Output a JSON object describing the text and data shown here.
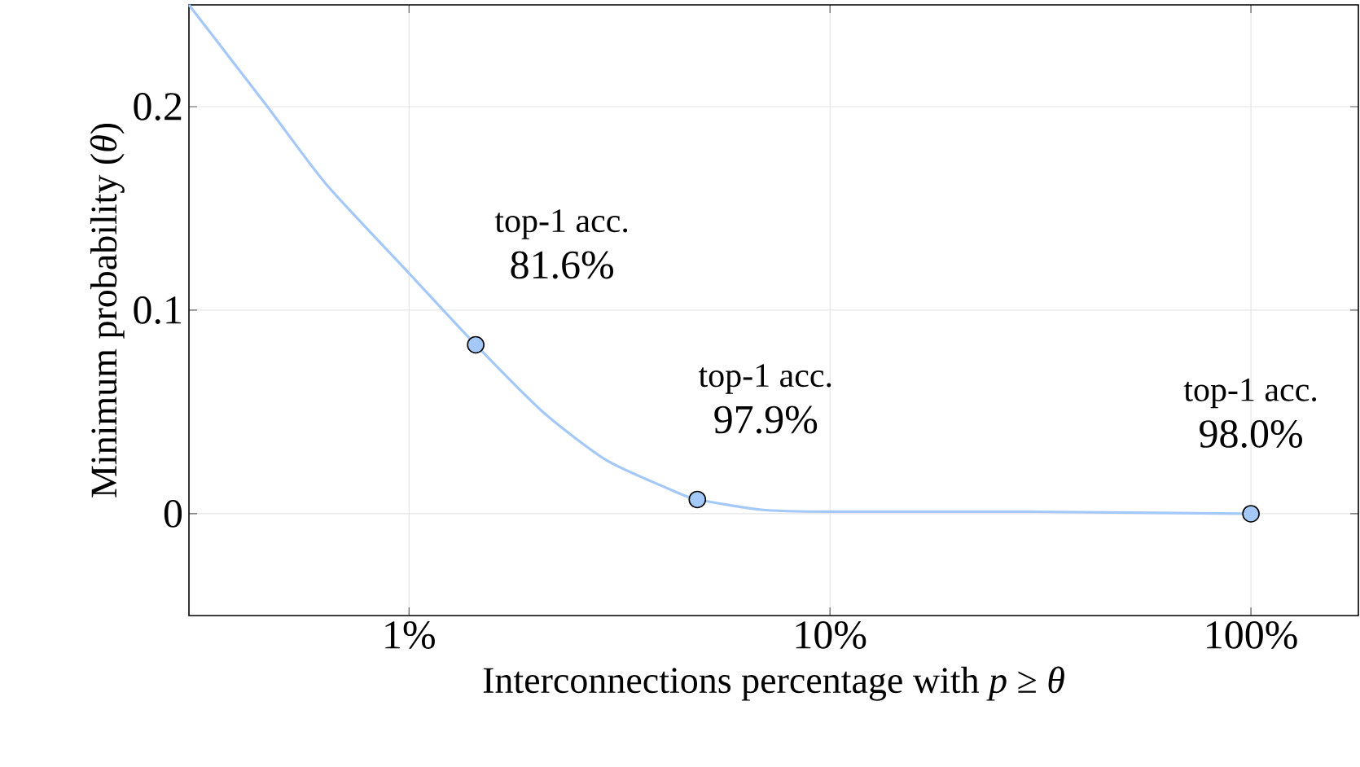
{
  "chart_data": {
    "type": "line",
    "xlabel": "Interconnections percentage with *p* ≥ *θ*",
    "ylabel": "Minimum probability (*θ*)",
    "log": "x",
    "grid": true,
    "xlim": [
      0.3,
      180
    ],
    "ylim": [
      -0.05,
      0.25
    ],
    "xticks": [
      {
        "value": 1,
        "label": "1%"
      },
      {
        "value": 10,
        "label": "10%"
      },
      {
        "value": 100,
        "label": "100%"
      }
    ],
    "yticks": [
      0,
      0.1,
      0.2
    ],
    "series": [
      {
        "color": "#a4c8f8",
        "marker": "none",
        "line_style": "solid",
        "x": [
          0.3,
          0.457,
          0.635,
          0.991,
          1.44,
          2.08,
          2.96,
          4.39,
          4.84,
          6.85,
          10,
          30,
          100
        ],
        "values": [
          0.25,
          0.201,
          0.162,
          0.119,
          0.083,
          0.05,
          0.026,
          0.01,
          0.007,
          0.002,
          0.001,
          0.001,
          0
        ]
      },
      {
        "type": "scatter",
        "color": "#a4c8f8",
        "marker": "circle",
        "x": [
          1.44,
          4.84,
          100
        ],
        "values": [
          0.083,
          0.007,
          0
        ]
      }
    ],
    "annotations": [
      "top-1 acc.",
      "81.6%",
      "top-1 acc.",
      "97.9%",
      "top-1 acc.",
      "98.0%"
    ]
  }
}
